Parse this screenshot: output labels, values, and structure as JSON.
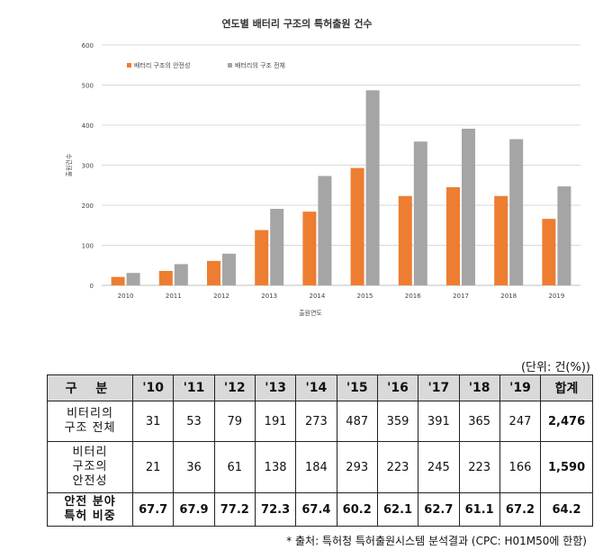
{
  "chart_data": {
    "type": "bar",
    "title": "연도별 배터리 구조의 특허출원 건수",
    "xlabel": "출원연도",
    "ylabel": "출원건수",
    "ylim": [
      0,
      600
    ],
    "yticks": [
      "0",
      "100",
      "200",
      "300",
      "400",
      "500",
      "600"
    ],
    "categories": [
      "2010",
      "2011",
      "2012",
      "2013",
      "2014",
      "2015",
      "2016",
      "2017",
      "2018",
      "2019"
    ],
    "series": [
      {
        "name": "배터리 구조의 안전성",
        "color": "#ed7d31",
        "values": [
          21,
          36,
          61,
          138,
          184,
          293,
          223,
          245,
          223,
          166
        ]
      },
      {
        "name": "배터리의 구조 전체",
        "color": "#a5a5a5",
        "values": [
          31,
          53,
          79,
          191,
          273,
          487,
          359,
          391,
          365,
          247
        ]
      }
    ],
    "legend_position": "top-left",
    "grid": true
  },
  "table": {
    "unit": "(단위: 건(%))",
    "header": [
      "구 분",
      "'10",
      "'11",
      "'12",
      "'13",
      "'14",
      "'15",
      "'16",
      "'17",
      "'18",
      "'19",
      "합계"
    ],
    "rows": [
      {
        "label": "비터리의\n구조 전체",
        "values": [
          "31",
          "53",
          "79",
          "191",
          "273",
          "487",
          "359",
          "391",
          "365",
          "247",
          "2,476"
        ]
      },
      {
        "label": "비터리\n구조의\n안전성",
        "values": [
          "21",
          "36",
          "61",
          "138",
          "184",
          "293",
          "223",
          "245",
          "223",
          "166",
          "1,590"
        ]
      },
      {
        "label": "안전 분야\n특허 비중",
        "values": [
          "67.7",
          "67.9",
          "77.2",
          "72.3",
          "67.4",
          "60.2",
          "62.1",
          "62.7",
          "61.1",
          "67.2",
          "64.2"
        ]
      }
    ],
    "source": "* 출처: 특허청 특허출원시스템 분석결과 (CPC: H01M50에 한함)"
  }
}
